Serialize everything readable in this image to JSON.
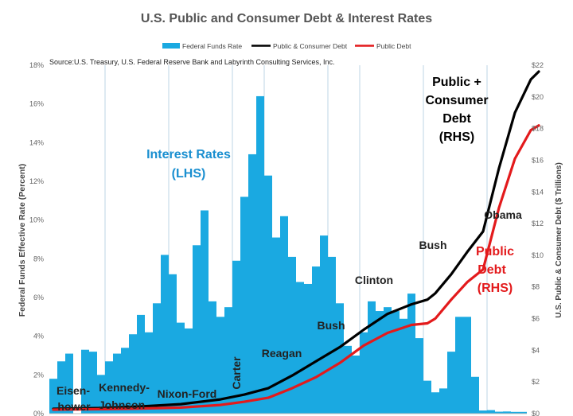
{
  "chart_data": {
    "type": "bar",
    "title": "U.S. Public and Consumer Debt & Interest Rates",
    "source": "Source:U.S. Treasury, U.S. Federal Reserve Bank and Labyrinth Consulting Services, Inc.",
    "ylabel_left": "Federal Funds Effective Rate (Percent)",
    "ylabel_right": "U.S. Public & Consumer Debt ($ Trillions)",
    "ylim_left": [
      0,
      18
    ],
    "ylim_right": [
      0,
      22
    ],
    "yticks_left": [
      "0%",
      "2%",
      "4%",
      "6%",
      "8%",
      "10%",
      "12%",
      "14%",
      "16%",
      "18%"
    ],
    "yticks_right": [
      "$0",
      "$2",
      "$4",
      "$6",
      "$8",
      "$10",
      "$12",
      "$14",
      "$16",
      "$18",
      "$20",
      "$22"
    ],
    "grid": "vertical lines",
    "legend_position": "top",
    "colors": {
      "federal_funds": "#1aa9e1",
      "public_consumer": "#000000",
      "public_debt": "#e31a1c",
      "interest_label": "#1a8fd0",
      "grid": "#c9dbe8",
      "title": "#555555"
    },
    "legend": [
      {
        "label": "Federal Funds Rate",
        "kind": "bar",
        "color": "#1aa9e1"
      },
      {
        "label": "Public & Consumer Debt",
        "kind": "line",
        "color": "#000000"
      },
      {
        "label": "Public Debt",
        "kind": "line",
        "color": "#e31a1c"
      }
    ],
    "x_start_year": 1954,
    "series": [
      {
        "name": "Federal Funds Rate",
        "axis": "left",
        "values": [
          1.8,
          2.7,
          3.1,
          0.0,
          3.3,
          3.2,
          2.0,
          2.7,
          3.1,
          3.4,
          4.1,
          5.1,
          4.2,
          5.7,
          8.2,
          7.2,
          4.7,
          4.4,
          8.7,
          10.5,
          5.8,
          5.0,
          5.5,
          7.9,
          11.2,
          13.4,
          16.4,
          12.3,
          9.1,
          10.2,
          8.1,
          6.8,
          6.7,
          7.6,
          9.2,
          8.1,
          5.7,
          3.5,
          3.0,
          4.2,
          5.8,
          5.3,
          5.5,
          5.3,
          4.9,
          6.2,
          3.9,
          1.7,
          1.1,
          1.3,
          3.2,
          5.0,
          5.0,
          1.9,
          0.16,
          0.18,
          0.1,
          0.11,
          0.09,
          0.09
        ]
      },
      {
        "name": "Public & Consumer Debt",
        "axis": "right",
        "years": [
          1954,
          1960,
          1965,
          1970,
          1975,
          1978,
          1981,
          1984,
          1987,
          1990,
          1993,
          1996,
          1999,
          2001,
          2002,
          2004,
          2006,
          2008,
          2010,
          2012,
          2014,
          2015
        ],
        "values": [
          0.3,
          0.35,
          0.45,
          0.6,
          0.9,
          1.2,
          1.6,
          2.4,
          3.3,
          4.2,
          5.3,
          6.3,
          6.9,
          7.2,
          7.6,
          8.8,
          10.2,
          11.5,
          15.5,
          19.0,
          21.1,
          21.6
        ]
      },
      {
        "name": "Public Debt",
        "axis": "right",
        "years": [
          1954,
          1960,
          1965,
          1970,
          1975,
          1978,
          1981,
          1984,
          1987,
          1990,
          1993,
          1996,
          1999,
          2001,
          2002,
          2004,
          2006,
          2008,
          2010,
          2012,
          2014,
          2015
        ],
        "values": [
          0.25,
          0.28,
          0.32,
          0.38,
          0.55,
          0.75,
          1.0,
          1.6,
          2.3,
          3.2,
          4.3,
          5.1,
          5.6,
          5.7,
          6.0,
          7.2,
          8.3,
          9.1,
          13.0,
          16.1,
          17.9,
          18.2
        ]
      }
    ],
    "annotations": {
      "interest_rates_1": "Interest Rates",
      "interest_rates_2": "(LHS)",
      "pc_debt_1": "Public +",
      "pc_debt_2": "Consumer",
      "pc_debt_3": "Debt",
      "pc_debt_4": "(RHS)",
      "public_debt_1": "Public",
      "public_debt_2": "Debt",
      "public_debt_3": "(RHS)",
      "eisenhower_1": "Eisen-",
      "eisenhower_2": "hower",
      "kennedy_1": "Kennedy-",
      "kennedy_2": "Johnson",
      "nixon": "Nixon-Ford",
      "carter": "Carter",
      "reagan": "Reagan",
      "bush1": "Bush",
      "clinton": "Clinton",
      "bush2": "Bush",
      "obama": "Obama"
    }
  }
}
